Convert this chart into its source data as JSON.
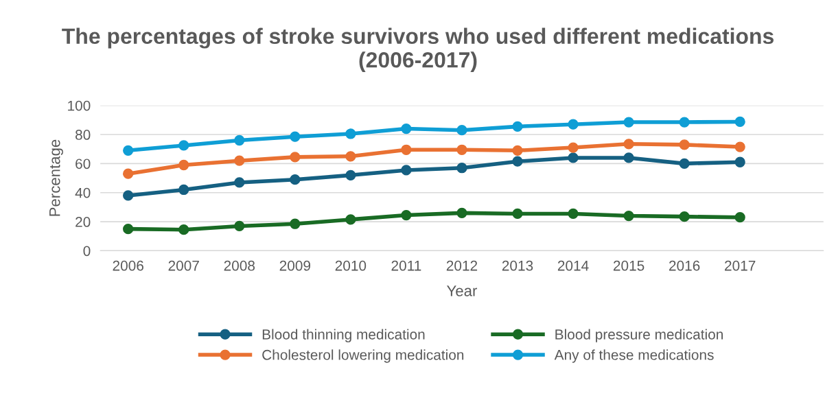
{
  "chart_data": {
    "type": "line",
    "title": "The percentages of stroke survivors who used different medications (2006-2017)",
    "xlabel": "Year",
    "ylabel": "Percentage",
    "categories": [
      "2006",
      "2007",
      "2008",
      "2009",
      "2010",
      "2011",
      "2012",
      "2013",
      "2014",
      "2015",
      "2016",
      "2017",
      null
    ],
    "series": [
      {
        "name": "Blood thinning medication",
        "color": "#156082",
        "values": [
          38,
          42,
          47,
          49,
          52,
          55.5,
          57,
          61.5,
          64,
          64,
          60,
          61,
          null
        ]
      },
      {
        "name": "Cholesterol lowering medication",
        "color": "#e97132",
        "values": [
          53,
          59,
          62,
          64.5,
          65,
          69.5,
          69.5,
          69,
          71,
          73.5,
          73,
          71.5,
          null
        ]
      },
      {
        "name": "Blood pressure medication",
        "color": "#196b24",
        "values": [
          15,
          14.5,
          17,
          18.5,
          21.5,
          24.5,
          26,
          25.5,
          25.5,
          24,
          23.5,
          23,
          null
        ]
      },
      {
        "name": "Any of these medications",
        "color": "#0f9ed5",
        "values": [
          69,
          72.5,
          76,
          78.5,
          80.5,
          84,
          83,
          85.5,
          87,
          88.5,
          88.5,
          88.8,
          null
        ]
      }
    ],
    "ylim": [
      0,
      100
    ],
    "yticks": [
      0,
      20,
      40,
      60,
      80,
      100
    ],
    "grid": "y",
    "legend": "bottom",
    "marker": "circle",
    "line_style": "solid"
  }
}
